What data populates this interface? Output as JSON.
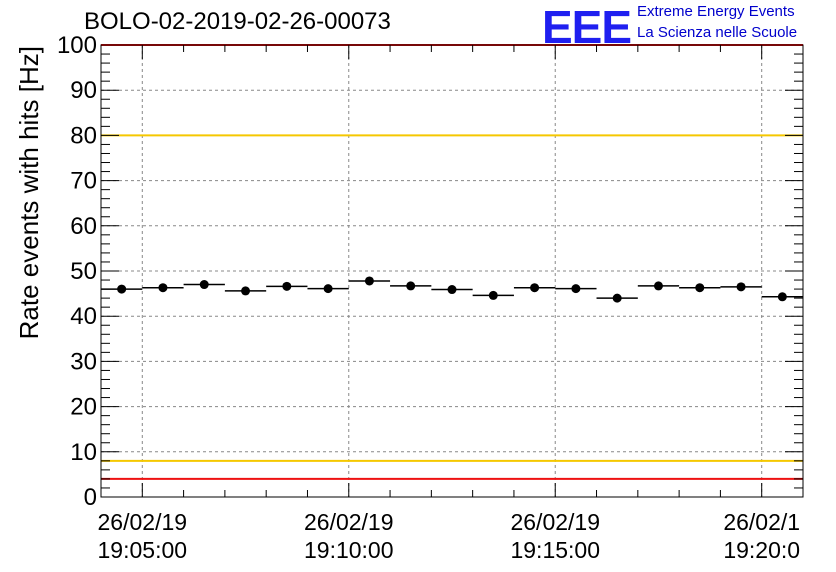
{
  "chart_data": {
    "type": "scatter",
    "title": "BOLO-02-2019-02-26-00073",
    "ylabel": "Rate events with hits [Hz]",
    "xlabel": "",
    "ylim": [
      0,
      100
    ],
    "y_ticks": [
      "0",
      "10",
      "20",
      "30",
      "40",
      "50",
      "60",
      "70",
      "80",
      "90",
      "100"
    ],
    "x_range_minutes": [
      1.0,
      18.0
    ],
    "x_tick_minutes": [
      2.0,
      7.0,
      12.0,
      17.0
    ],
    "x_tick_labels": [
      {
        "date": "26/02/19",
        "time": "19:05:00"
      },
      {
        "date": "26/02/19",
        "time": "19:10:00"
      },
      {
        "date": "26/02/19",
        "time": "19:15:00"
      },
      {
        "date": "26/02/1",
        "time": "19:20:0"
      }
    ],
    "grid": true,
    "bin_width_minutes": 1.0,
    "series": [
      {
        "name": "rate",
        "x_minutes": [
          1.5,
          2.5,
          3.5,
          4.5,
          5.5,
          6.5,
          7.5,
          8.5,
          9.5,
          10.5,
          11.5,
          12.5,
          13.5,
          14.5,
          15.5,
          16.5,
          17.5
        ],
        "values": [
          46.0,
          46.3,
          47.0,
          45.6,
          46.6,
          46.1,
          47.8,
          46.7,
          45.9,
          44.6,
          46.3,
          46.1,
          44.0,
          46.7,
          46.3,
          46.5,
          44.3
        ]
      }
    ],
    "reference_lines": [
      {
        "value": 80,
        "color": "#f5c800"
      },
      {
        "value": 8,
        "color": "#f5c800"
      },
      {
        "value": 100,
        "color": "#ee1111"
      },
      {
        "value": 4,
        "color": "#ee1111"
      }
    ]
  },
  "logo": {
    "letters": "EEE",
    "line1": "Extreme Energy Events",
    "line2": "La Scienza nelle Scuole"
  }
}
